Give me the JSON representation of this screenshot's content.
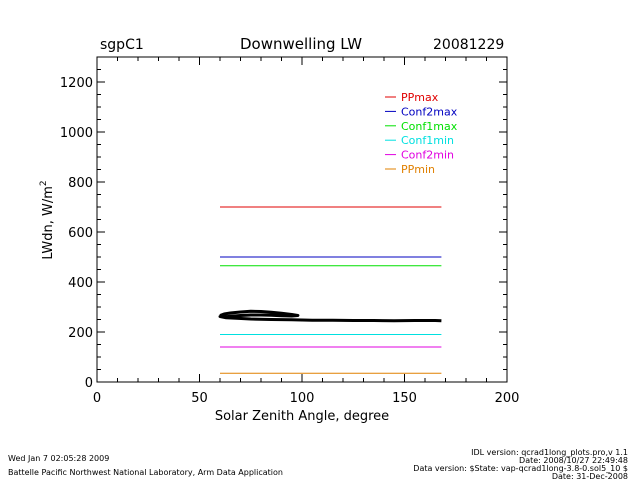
{
  "header": {
    "site": "sgpC1",
    "title": "Downwelling LW",
    "date": "20081229"
  },
  "footer": {
    "left_line1": "Wed Jan  7 02:05:28 2009",
    "left_line2": "Battelle Pacific Northwest National Laboratory, Arm Data Application",
    "right_line1": "IDL version: qcrad1long_plots.pro,v 1.1",
    "right_line2": "Date: 2008/10/27 22:49:48",
    "right_line3": "Data version: $State: vap-qcrad1long-3.8-0.sol5_10 $",
    "right_line4": "Date: 31-Dec-2008"
  },
  "chart_data": {
    "type": "line",
    "title": "Downwelling LW",
    "xlabel": "Solar Zenith Angle, degree",
    "ylabel": "LWdn, W/m",
    "ylabel_superscript": "2",
    "xlim": [
      0,
      200
    ],
    "ylim": [
      0,
      1300
    ],
    "xticks": [
      0,
      50,
      100,
      150,
      200
    ],
    "yticks": [
      0,
      200,
      400,
      600,
      800,
      1000,
      1200
    ],
    "grid": false,
    "legend_position": "top-right",
    "series": [
      {
        "name": "PPmax",
        "color": "#e00000",
        "x": [
          60,
          168
        ],
        "y": [
          700,
          700
        ]
      },
      {
        "name": "Conf2max",
        "color": "#0000c0",
        "x": [
          60,
          168
        ],
        "y": [
          500,
          500
        ]
      },
      {
        "name": "Conf1max",
        "color": "#00e000",
        "x": [
          60,
          168
        ],
        "y": [
          465,
          465
        ]
      },
      {
        "name": "Conf1min",
        "color": "#00e0e0",
        "x": [
          60,
          168
        ],
        "y": [
          190,
          190
        ]
      },
      {
        "name": "Conf2min",
        "color": "#e000e0",
        "x": [
          60,
          168
        ],
        "y": [
          140,
          140
        ]
      },
      {
        "name": "PPmin",
        "color": "#e08000",
        "x": [
          60,
          168
        ],
        "y": [
          35,
          35
        ]
      }
    ],
    "observations": {
      "color": "#000000",
      "x": [
        60,
        62,
        65,
        70,
        75,
        80,
        85,
        90,
        95,
        98,
        95,
        90,
        85,
        80,
        75,
        70,
        65,
        62,
        60,
        63,
        68,
        75,
        85,
        95,
        105,
        115,
        125,
        135,
        145,
        155,
        165,
        168
      ],
      "y": [
        266,
        272,
        276,
        280,
        283,
        282,
        279,
        275,
        270,
        266,
        264,
        265,
        267,
        268,
        268,
        266,
        263,
        260,
        262,
        257,
        255,
        252,
        250,
        249,
        247,
        247,
        246,
        246,
        245,
        246,
        246,
        245
      ]
    }
  }
}
